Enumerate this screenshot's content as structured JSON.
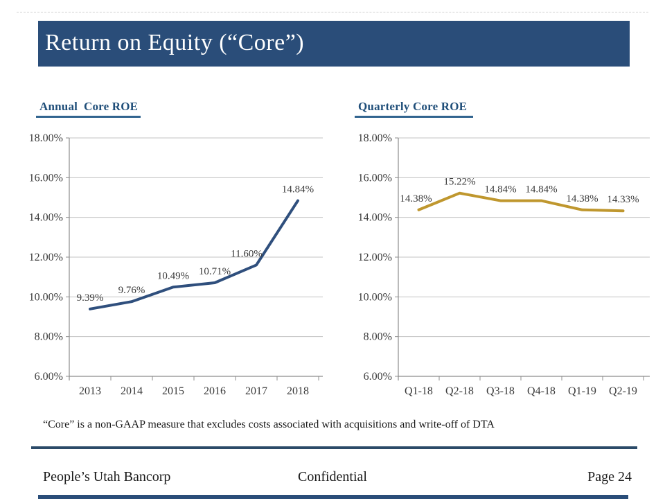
{
  "slide": {
    "title": "Return on Equity (“Core”)",
    "footnote": "“Core” is a non-GAAP measure that excludes costs associated with acquisitions and write-off of DTA",
    "footer": {
      "left": "People’s Utah Bancorp",
      "center": "Confidential",
      "right": "Page 24"
    }
  },
  "colors": {
    "title_bar": "#2A4D79",
    "heading_text": "#1F4E79",
    "heading_underline": "#31648F",
    "gridline": "#C3C3C3",
    "axis": "#8C8C8C",
    "divider": "#2B4A68",
    "bottom_bar": "#2A4D79",
    "annual_line": "#2F4F7D",
    "quarterly_line": "#BF972E"
  },
  "chart_data": [
    {
      "type": "line",
      "title": "Annual  Core ROE",
      "categories": [
        "2013",
        "2014",
        "2015",
        "2016",
        "2017",
        "2018"
      ],
      "values": [
        9.39,
        9.76,
        10.49,
        10.71,
        11.6,
        14.84
      ],
      "labels": [
        "9.39%",
        "9.76%",
        "10.49%",
        "10.71%",
        "11.60%",
        "14.84%"
      ],
      "label_dx": [
        0,
        0,
        0,
        0,
        -14,
        0
      ],
      "ylim": [
        6,
        18
      ],
      "yticks": [
        {
          "v": 18,
          "label": "18.00%"
        },
        {
          "v": 16,
          "label": "16.00%"
        },
        {
          "v": 14,
          "label": "14.00%"
        },
        {
          "v": 12,
          "label": "12.00%"
        },
        {
          "v": 10,
          "label": "10.00%"
        },
        {
          "v": 8,
          "label": "8.00%"
        },
        {
          "v": 6,
          "label": "6.00%"
        }
      ],
      "grid": true,
      "legend": "none",
      "line_color": "#2F4F7D"
    },
    {
      "type": "line",
      "title": "Quarterly Core ROE",
      "categories": [
        "Q1-18",
        "Q2-18",
        "Q3-18",
        "Q4-18",
        "Q1-19",
        "Q2-19"
      ],
      "values": [
        14.38,
        15.22,
        14.84,
        14.84,
        14.38,
        14.33
      ],
      "labels": [
        "14.38%",
        "15.22%",
        "14.84%",
        "14.84%",
        "14.38%",
        "14.33%"
      ],
      "label_dx": [
        -4,
        0,
        0,
        0,
        0,
        0
      ],
      "ylim": [
        6,
        18
      ],
      "yticks": [
        {
          "v": 18,
          "label": "18.00%"
        },
        {
          "v": 16,
          "label": "16.00%"
        },
        {
          "v": 14,
          "label": "14.00%"
        },
        {
          "v": 12,
          "label": "12.00%"
        },
        {
          "v": 10,
          "label": "10.00%"
        },
        {
          "v": 8,
          "label": "8.00%"
        },
        {
          "v": 6,
          "label": "6.00%"
        }
      ],
      "grid": true,
      "legend": "none",
      "line_color": "#BF972E"
    }
  ]
}
